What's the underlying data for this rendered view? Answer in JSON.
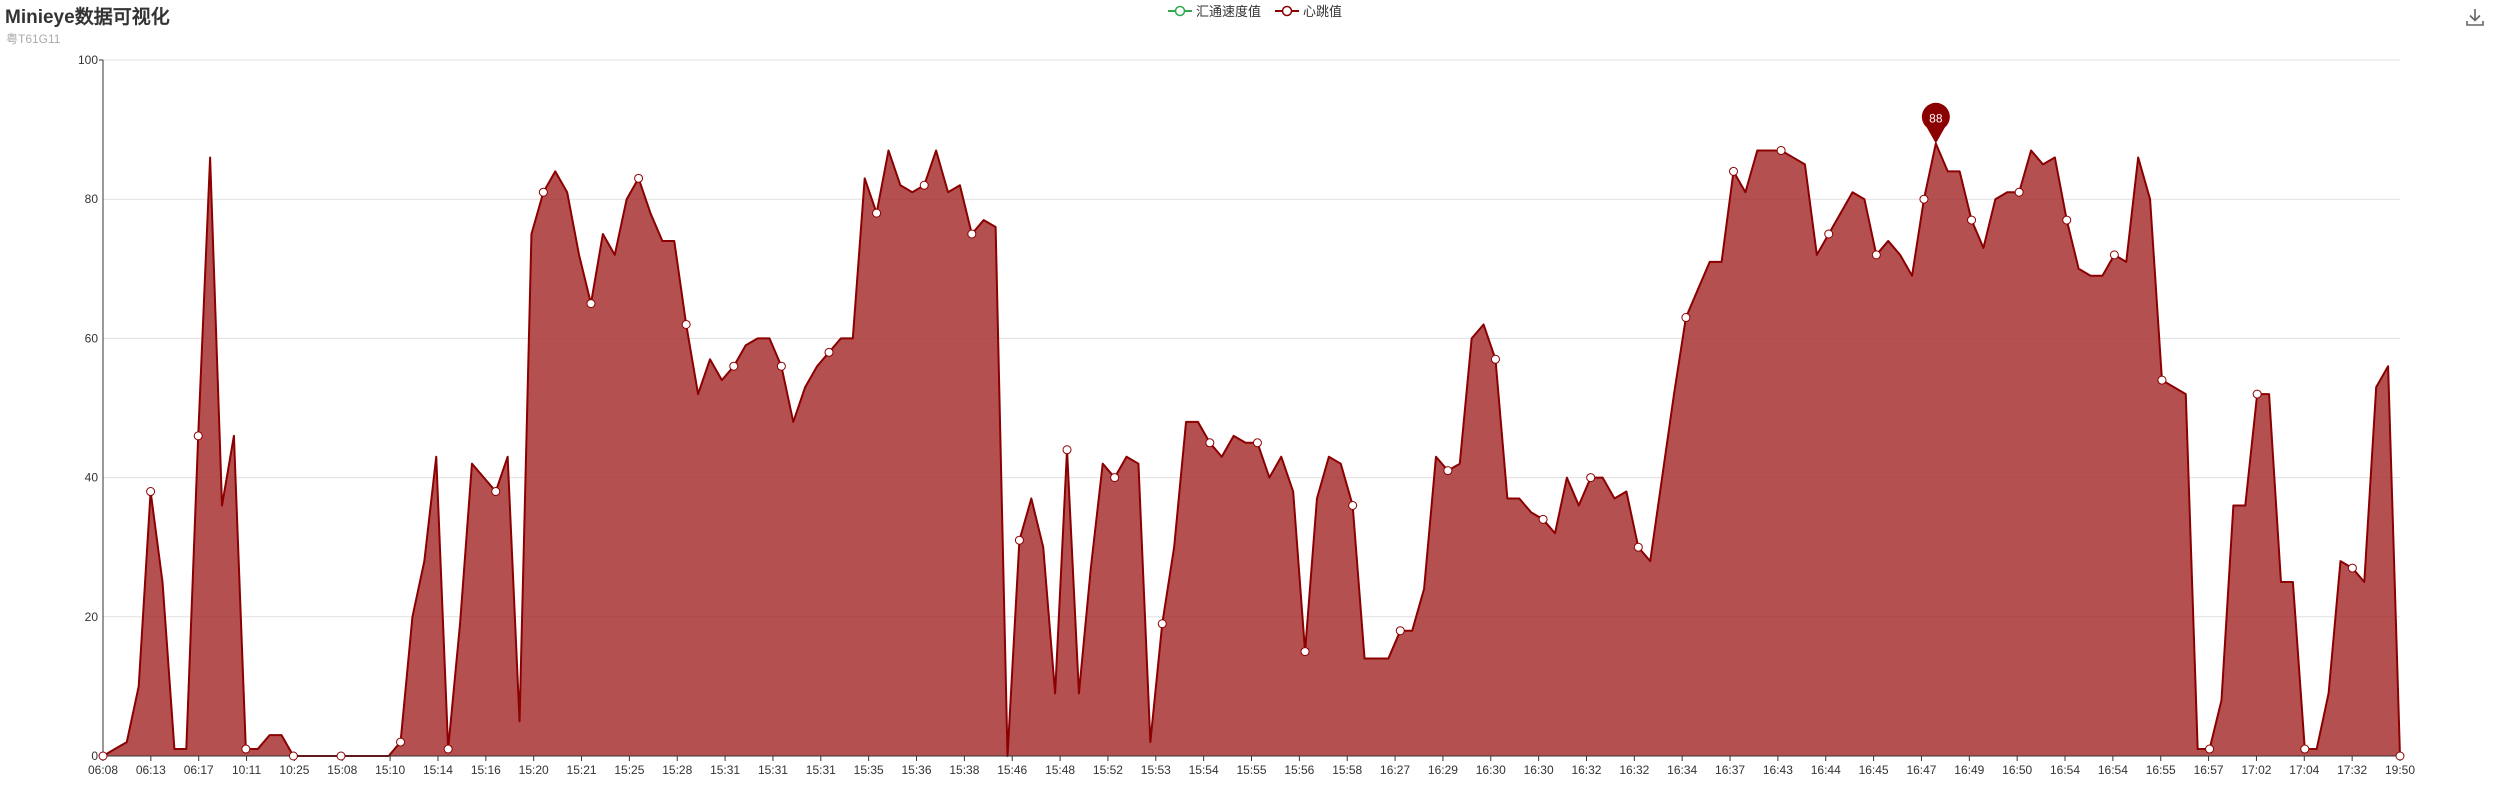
{
  "header": {
    "title": "Minieye数据可视化",
    "subtitle": "粤T61G11"
  },
  "legend": [
    {
      "name": "汇通速度值",
      "color": "#2fa84f"
    },
    {
      "name": "心跳值",
      "color": "#8b0000"
    }
  ],
  "toolbar": {
    "icon": "download-icon"
  },
  "chart_data": {
    "type": "area",
    "title": "Minieye数据可视化",
    "subtitle": "粤T61G11",
    "xlabel": "",
    "ylabel": "",
    "ylim": [
      0,
      100
    ],
    "yticks": [
      0,
      20,
      40,
      60,
      80,
      100
    ],
    "grid": true,
    "legend_position": "top-center",
    "x_tick_labels": [
      "06:08",
      "06:13",
      "06:17",
      "10:11",
      "10:25",
      "15:08",
      "15:10",
      "15:14",
      "15:16",
      "15:20",
      "15:21",
      "15:25",
      "15:28",
      "15:31",
      "15:31",
      "15:31",
      "15:35",
      "15:36",
      "15:38",
      "15:46",
      "15:48",
      "15:52",
      "15:53",
      "15:54",
      "15:55",
      "15:56",
      "15:58",
      "16:27",
      "16:29",
      "16:30",
      "16:30",
      "16:32",
      "16:32",
      "16:34",
      "16:37",
      "16:43",
      "16:44",
      "16:45",
      "16:47",
      "16:49",
      "16:50",
      "16:54",
      "16:54",
      "16:55",
      "16:57",
      "17:02",
      "17:04",
      "17:32",
      "19:50"
    ],
    "series": [
      {
        "name": "心跳值",
        "color": "#8b0000",
        "fill": "#a52a2a",
        "max_label": 88,
        "values": [
          0,
          1,
          2,
          10,
          38,
          25,
          1,
          1,
          46,
          86,
          36,
          46,
          1,
          1,
          3,
          3,
          0,
          0,
          0,
          0,
          0,
          0,
          0,
          0,
          0,
          2,
          20,
          28,
          43,
          1,
          19,
          42,
          40,
          38,
          43,
          5,
          75,
          81,
          84,
          81,
          72,
          65,
          75,
          72,
          80,
          83,
          78,
          74,
          74,
          62,
          52,
          57,
          54,
          56,
          59,
          60,
          60,
          56,
          48,
          53,
          56,
          58,
          60,
          60,
          83,
          78,
          87,
          82,
          81,
          82,
          87,
          81,
          82,
          75,
          77,
          76,
          0,
          31,
          37,
          30,
          9,
          44,
          9,
          27,
          42,
          40,
          43,
          42,
          2,
          19,
          30,
          48,
          48,
          45,
          43,
          46,
          45,
          45,
          40,
          43,
          38,
          15,
          37,
          43,
          42,
          36,
          14,
          14,
          14,
          18,
          18,
          24,
          43,
          41,
          42,
          60,
          62,
          57,
          37,
          37,
          35,
          34,
          32,
          40,
          36,
          40,
          40,
          37,
          38,
          30,
          28,
          40,
          52,
          63,
          67,
          71,
          71,
          84,
          81,
          87,
          87,
          87,
          86,
          85,
          72,
          75,
          78,
          81,
          80,
          72,
          74,
          72,
          69,
          80,
          88,
          84,
          84,
          77,
          73,
          80,
          81,
          81,
          87,
          85,
          86,
          77,
          70,
          69,
          69,
          72,
          71,
          86,
          80,
          54,
          53,
          52,
          1,
          1,
          8,
          36,
          36,
          52,
          52,
          25,
          25,
          1,
          1,
          9,
          28,
          27,
          25,
          53,
          56,
          0
        ],
        "markers": [
          0,
          4,
          8,
          12,
          16,
          20,
          25,
          29,
          33,
          37,
          41,
          45,
          49,
          53,
          57,
          61,
          65,
          69,
          73,
          77,
          81,
          85,
          89,
          93,
          97,
          101,
          105,
          109,
          113,
          117,
          121,
          125,
          129,
          133,
          137,
          141,
          145,
          149,
          153,
          157,
          161,
          165,
          169,
          173,
          177,
          181,
          185,
          189,
          193
        ]
      }
    ]
  }
}
